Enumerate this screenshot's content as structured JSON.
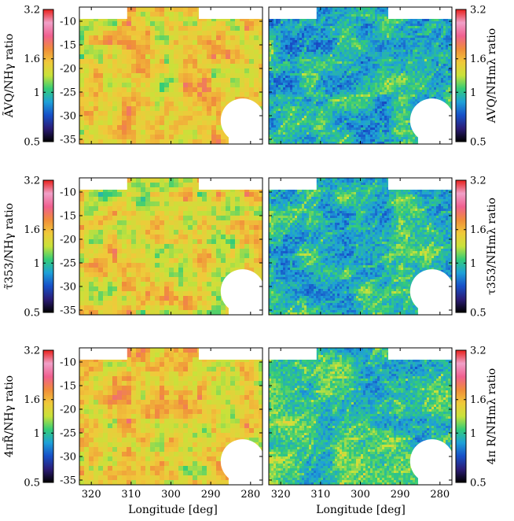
{
  "chart_data": {
    "type": "heatmap",
    "xlabel": "Longitude [deg]",
    "x_ticks": [
      320,
      310,
      300,
      290,
      280
    ],
    "xlim": [
      323,
      277
    ],
    "y_ticks": [
      -10,
      -15,
      -20,
      -25,
      -30,
      -35
    ],
    "ylim": [
      -36,
      -7
    ],
    "colorbar": {
      "ticks": [
        "0.5",
        "1",
        "1.6",
        "3.2"
      ],
      "tick_values": [
        0.5,
        1.0,
        1.6,
        3.2
      ],
      "range": [
        0.5,
        3.2
      ],
      "colormap": [
        "#000000",
        "#2b1d77",
        "#1750c8",
        "#1ea0d8",
        "#33cc77",
        "#c8e23a",
        "#f0c93a",
        "#f08d3a",
        "#f06090",
        "#f0a0c8",
        "#e8201a"
      ]
    },
    "panels": [
      {
        "id": "a-left",
        "row": 0,
        "col": 0,
        "cbar_side": "left",
        "ylabel": "ÃVQ/NHγ ratio",
        "mean_level": 0.58,
        "texture": "smooth"
      },
      {
        "id": "a-right",
        "row": 0,
        "col": 1,
        "cbar_side": "right",
        "ylabel": "AVQ/NHmλ ratio",
        "mean_level": 0.32,
        "texture": "filament"
      },
      {
        "id": "t-left",
        "row": 1,
        "col": 0,
        "cbar_side": "left",
        "ylabel": "τ̃353/NHγ ratio",
        "mean_level": 0.55,
        "texture": "smooth"
      },
      {
        "id": "t-right",
        "row": 1,
        "col": 1,
        "cbar_side": "right",
        "ylabel": "τ353/NHmλ ratio",
        "mean_level": 0.33,
        "texture": "filament"
      },
      {
        "id": "r-left",
        "row": 2,
        "col": 0,
        "cbar_side": "left",
        "ylabel": "4πR̃/NHγ ratio",
        "mean_level": 0.56,
        "texture": "smooth"
      },
      {
        "id": "r-right",
        "row": 2,
        "col": 1,
        "cbar_side": "right",
        "ylabel": "4π R/NHmλ ratio",
        "mean_level": 0.34,
        "texture": "filament"
      }
    ]
  }
}
